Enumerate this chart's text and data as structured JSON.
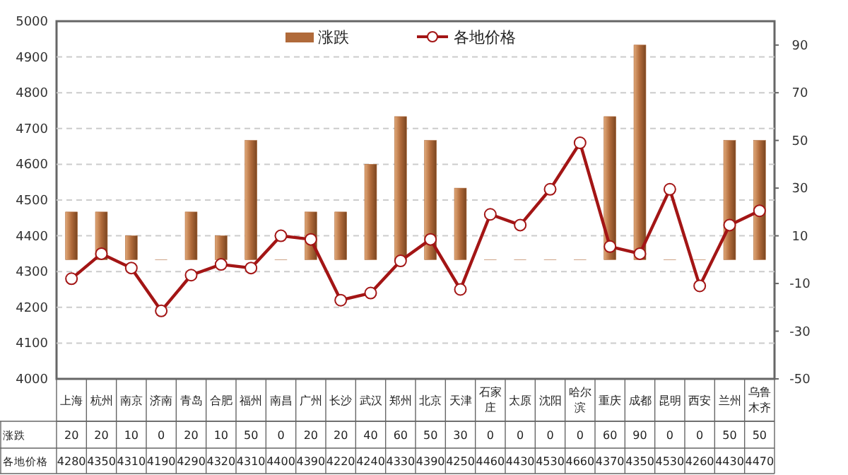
{
  "chart_data": {
    "type": "bar",
    "categories": [
      "上海",
      "杭州",
      "南京",
      "济南",
      "青岛",
      "合肥",
      "福州",
      "南昌",
      "广州",
      "长沙",
      "武汉",
      "郑州",
      "北京",
      "天津",
      "石家庄",
      "太原",
      "沈阳",
      "哈尔滨",
      "重庆",
      "成都",
      "昆明",
      "西安",
      "兰州",
      "乌鲁木齐"
    ],
    "series": [
      {
        "name": "涨跌",
        "axis": "y2",
        "color": "#b06a3a",
        "values": [
          20,
          20,
          10,
          0,
          20,
          10,
          50,
          0,
          20,
          20,
          40,
          60,
          50,
          30,
          0,
          0,
          0,
          0,
          60,
          90,
          0,
          0,
          50,
          50
        ]
      },
      {
        "name": "各地价格",
        "type": "line",
        "color": "#a31515",
        "values": [
          4280,
          4350,
          4310,
          4190,
          4290,
          4320,
          4310,
          4400,
          4390,
          4220,
          4240,
          4330,
          4390,
          4250,
          4460,
          4430,
          4530,
          4660,
          4370,
          4350,
          4530,
          4260,
          4430,
          4470
        ]
      }
    ],
    "ylim": [
      4000,
      5000
    ],
    "yticks": [
      4000,
      4100,
      4200,
      4300,
      4400,
      4500,
      4600,
      4700,
      4800,
      4900,
      5000
    ],
    "y2lim": [
      -50,
      100
    ],
    "y2ticks": [
      -50,
      -30,
      -10,
      10,
      30,
      50,
      70,
      90
    ],
    "grid": "y",
    "legend": "top",
    "marker": "circle",
    "line_style": "solid",
    "data_labels": true
  }
}
